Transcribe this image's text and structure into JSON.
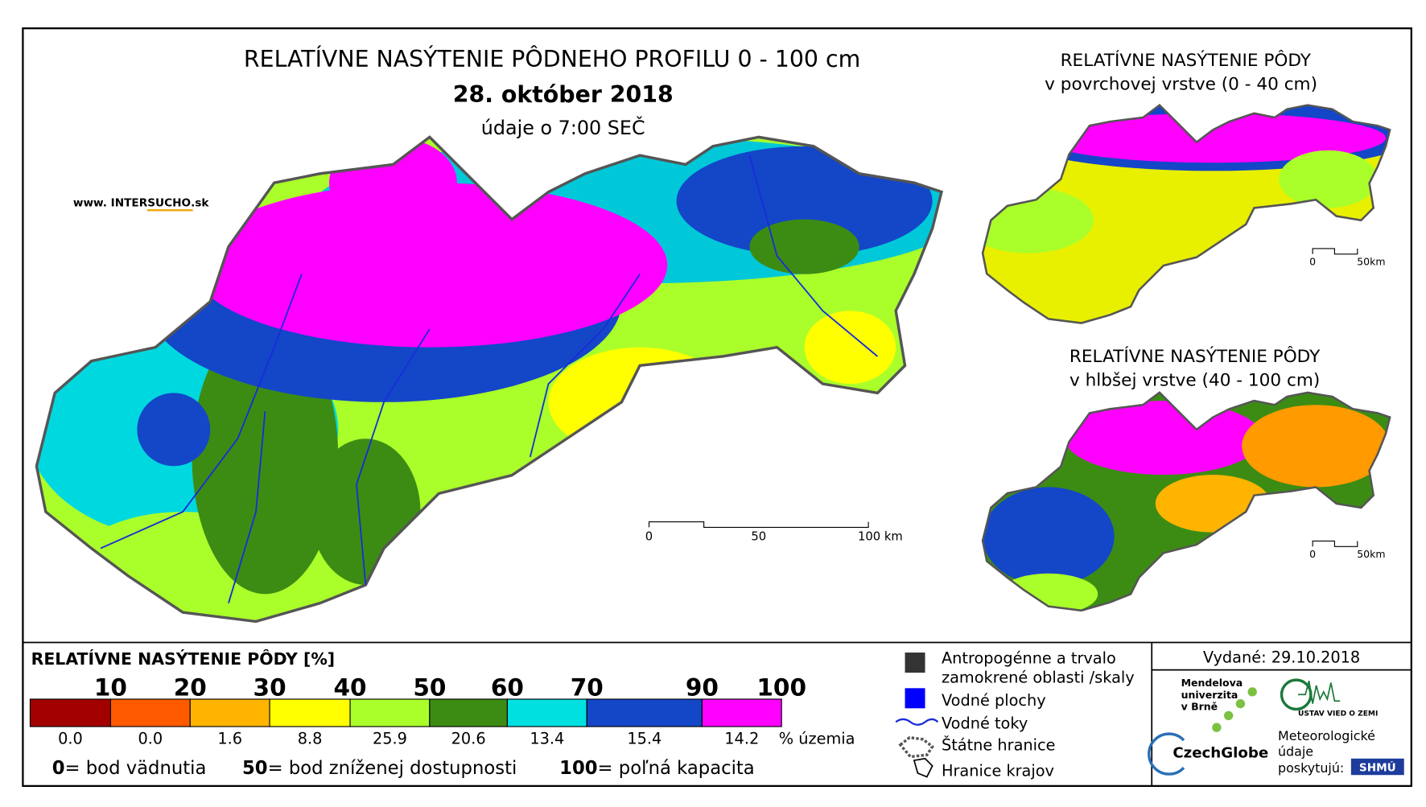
{
  "header": {
    "title": "RELATÍVNE NASÝTENIE PÔDNEHO PROFILU 0 - 100 cm",
    "date": "28. október 2018",
    "time": "údaje o 7:00 SEČ",
    "website_prefix": "www. INTER",
    "website_brand": "SUCHO",
    "website_suffix": ".sk"
  },
  "scale_bar": {
    "labels": [
      "0",
      "50",
      "100 km"
    ]
  },
  "inset_top": {
    "title": "RELATÍVNE NASÝTENIE PÔDY",
    "subtitle": "v povrchovej vrstve (0 - 40 cm)",
    "scale_labels": [
      "0",
      "50km"
    ]
  },
  "inset_bottom": {
    "title": "RELATÍVNE NASÝTENIE PÔDY",
    "subtitle": "v hlbšej vrstve (40 - 100 cm)",
    "scale_labels": [
      "0",
      "50km"
    ]
  },
  "legend": {
    "title": "RELATÍVNE NASÝTENIE PÔDY [%]",
    "thresholds": [
      "10",
      "20",
      "30",
      "40",
      "50",
      "60",
      "70",
      "90",
      "100"
    ],
    "classes": [
      {
        "color": "#a30000",
        "share": "0.0"
      },
      {
        "color": "#ff5a00",
        "share": "0.0"
      },
      {
        "color": "#ffb400",
        "share": "1.6"
      },
      {
        "color": "#ffff00",
        "share": "8.8"
      },
      {
        "color": "#aaff2a",
        "share": "25.9"
      },
      {
        "color": "#3c8c14",
        "share": "20.6"
      },
      {
        "color": "#00e0e0",
        "share": "13.4"
      },
      {
        "color": "#1446c8",
        "share": "15.4"
      },
      {
        "color": "#ff00ff",
        "share": "14.2"
      }
    ],
    "share_unit": "% územia",
    "notes": [
      {
        "key": "0",
        "text": "= bod vädnutia"
      },
      {
        "key": "50",
        "text": "= bod zníženej dostupnosti"
      },
      {
        "key": "100",
        "text": "= poľná kapacita"
      }
    ]
  },
  "map_legend": {
    "anthropogenic": [
      "Antropogénne a trvalo",
      "zamokrené oblasti /skaly"
    ],
    "water_bodies": "Vodné plochy",
    "rivers": "Vodné toky",
    "border": "Štátne hranice",
    "regions": "Hranice krajov"
  },
  "issued": "Vydané: 29.10.2018",
  "logos": {
    "mendel": [
      "Mendelova",
      "univerzita",
      "v Brně"
    ],
    "czechglobe": "CzechGlobe",
    "earth_institute": "ÚSTAV VIED O ZEMI",
    "meteo": [
      "Meteorologické",
      "údaje",
      "poskytujú:"
    ],
    "shmu": "SHMÚ"
  }
}
